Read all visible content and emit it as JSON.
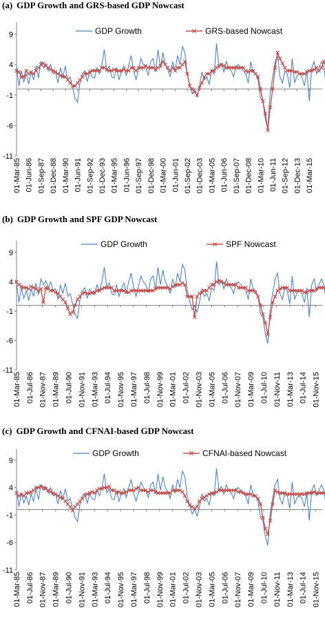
{
  "colors": {
    "gdp": "#4F81BD",
    "nowcast": "#C0504D",
    "zero_line": "#808080"
  },
  "chart_data": [
    {
      "type": "line",
      "panel_letter": "(a)",
      "title": "GDP Growth and GRS-based GDP Nowcast",
      "ylim": [
        -11,
        11
      ],
      "yticks": [
        "9",
        "4",
        "-1",
        "-6",
        "-11"
      ],
      "ytick_values": [
        9,
        4,
        -1,
        -6,
        -11
      ],
      "xlim": [
        1985.17,
        2016.5
      ],
      "xtick_labels": [
        "01-Mar-85",
        "01-Jun-86",
        "01-Sep-87",
        "01-Dec-88",
        "01-Mar-90",
        "01-Jun-91",
        "01-Sep-92",
        "01-Dec-93",
        "01-Mar-95",
        "01-Jun-96",
        "01-Sep-97",
        "01-Dec-98",
        "01-Mar-00",
        "01-Jun-01",
        "01-Sep-02",
        "01-Dec-03",
        "01-Mar-05",
        "01-Jun-06",
        "01-Sep-07",
        "01-Dec-08",
        "01-Mar-10",
        "01-Jun-11",
        "01-Sep-12",
        "01-Dec-13",
        "01-Mar-15"
      ],
      "xtick_values": [
        1985.17,
        1986.42,
        1987.67,
        1988.92,
        1990.17,
        1991.42,
        1992.67,
        1993.92,
        1995.17,
        1996.42,
        1997.67,
        1998.92,
        2000.17,
        2001.42,
        2002.67,
        2003.92,
        2005.17,
        2006.42,
        2007.67,
        2008.92,
        2010.17,
        2011.42,
        2012.67,
        2013.92,
        2015.17
      ],
      "legend": "top",
      "series": [
        {
          "name": "GDP Growth",
          "color_key": "gdp",
          "marker": "none",
          "x_start": 1985.17,
          "x_step": 0.25,
          "values": [
            3.8,
            0.5,
            3,
            1.2,
            2.5,
            0.8,
            2.8,
            1.5,
            3.8,
            1.8,
            4.5,
            3.5,
            4.2,
            3,
            4,
            2.5,
            2.8,
            1,
            3.5,
            2,
            3.8,
            1.5,
            2,
            0.2,
            -1.5,
            -2.2,
            1,
            2.5,
            3,
            1.2,
            2.8,
            2,
            1.8,
            3.5,
            2.5,
            4,
            6.5,
            3,
            3.8,
            2,
            1.8,
            3.5,
            1.5,
            2.8,
            3.8,
            2.2,
            4,
            5.5,
            3,
            1.5,
            3.2,
            5,
            4,
            3.5,
            2.2,
            4.5,
            5,
            2.8,
            6.5,
            3.5,
            6,
            4,
            3.2,
            2,
            4.5,
            3,
            5.5,
            4,
            7,
            6,
            2.5,
            0.8,
            -0.8,
            0,
            -1.2,
            0.5,
            2.8,
            1.5,
            2,
            0.8,
            3,
            2.5,
            7.5,
            3.5,
            4.2,
            2.8,
            4.5,
            3.5,
            3,
            2,
            3.8,
            4,
            3.5,
            3,
            2.5,
            1,
            4.5,
            2.8,
            2.5,
            1.5,
            -1.5,
            -2,
            -5,
            -6.5,
            -0.5,
            2,
            4.5,
            5.5,
            2,
            1,
            3,
            2.5,
            0.2,
            5,
            1,
            2.2,
            2.5,
            2,
            0.5,
            3,
            -2,
            3.5,
            4.5,
            2.5,
            3.5,
            4.5,
            3.5,
            0.5,
            1.5,
            2,
            1.5
          ]
        },
        {
          "name": "GRS-based Nowcast",
          "color_key": "nowcast",
          "marker": "x",
          "x_start": 1985.17,
          "x_step": 0.25,
          "values": [
            3,
            2.8,
            2,
            2,
            3,
            2.5,
            2.8,
            2.5,
            3,
            3.5,
            4,
            4.2,
            3.8,
            3.5,
            3.2,
            3,
            2.8,
            2.5,
            2.2,
            2,
            2,
            1.5,
            1,
            0.5,
            0.5,
            1,
            1.5,
            2,
            2.5,
            2.5,
            2.8,
            3,
            3,
            3,
            3,
            3.5,
            3.5,
            3.2,
            3,
            3,
            3.2,
            3,
            3,
            3,
            3.2,
            3,
            3,
            3.5,
            3.5,
            3,
            3.5,
            3.5,
            3.5,
            3.8,
            3.5,
            3.5,
            3.5,
            3.2,
            3.5,
            3.8,
            4.5,
            4,
            3.5,
            3,
            3.5,
            3,
            3.5,
            3.5,
            4,
            4.5,
            2.5,
            0.5,
            0,
            -0.5,
            -1,
            0.2,
            1,
            2,
            2.5,
            2.5,
            3,
            3,
            3.5,
            3.8,
            4,
            3.8,
            3.5,
            3.5,
            3.5,
            3.5,
            3.5,
            3.5,
            3.5,
            3.5,
            3,
            2.8,
            3,
            3,
            2.5,
            2,
            0,
            -2,
            -4,
            -6.8,
            -3,
            0,
            3.5,
            6,
            5,
            4.2,
            3.5,
            3,
            3,
            3,
            2.8,
            2.8,
            2.5,
            2.5,
            2.5,
            2.8,
            3,
            3,
            3.2,
            3.5,
            3,
            3.5,
            4.5,
            3.5,
            2,
            1.5,
            1.5
          ]
        }
      ]
    },
    {
      "type": "line",
      "panel_letter": "(b)",
      "title": "GDP Growth and SPF GDP Nowcast",
      "ylim": [
        -11,
        11
      ],
      "yticks": [
        "9",
        "4",
        "-1",
        "-6",
        "-11"
      ],
      "ytick_values": [
        9,
        4,
        -1,
        -6,
        -11
      ],
      "xlim": [
        1985.17,
        2016.5
      ],
      "xtick_labels": [
        "01-Mar-85",
        "01-Jul-86",
        "01-Nov-87",
        "01-Mar-89",
        "01-Jul-90",
        "01-Nov-91",
        "01-Mar-93",
        "01-Jul-94",
        "01-Nov-95",
        "01-Mar-97",
        "01-Jul-98",
        "01-Nov-99",
        "01-Mar-01",
        "01-Jul-02",
        "01-Nov-03",
        "01-Mar-05",
        "01-Jul-06",
        "01-Nov-07",
        "01-Mar-09",
        "01-Jul-10",
        "01-Nov-11",
        "01-Mar-13",
        "01-Jul-14",
        "01-Nov-15"
      ],
      "xtick_values": [
        1985.17,
        1986.5,
        1987.83,
        1989.17,
        1990.5,
        1991.83,
        1993.17,
        1994.5,
        1995.83,
        1997.17,
        1998.5,
        1999.83,
        2001.17,
        2002.5,
        2003.83,
        2005.17,
        2006.5,
        2007.83,
        2009.17,
        2010.5,
        2011.83,
        2013.17,
        2014.5,
        2015.83
      ],
      "legend": "top",
      "series": [
        {
          "name": "GDP Growth",
          "color_key": "gdp",
          "marker": "none",
          "x_start": 1985.17,
          "x_step": 0.25,
          "values": [
            3.8,
            0.5,
            3,
            1.2,
            2.5,
            0.8,
            2.8,
            1.5,
            3.8,
            1.8,
            4.5,
            3.5,
            4.2,
            3,
            4,
            2.5,
            2.8,
            1,
            3.5,
            2,
            3.8,
            1.5,
            2,
            0.2,
            -1.5,
            -2.2,
            1,
            2.5,
            3,
            1.2,
            2.8,
            2,
            1.8,
            3.5,
            2.5,
            4,
            6.5,
            3,
            3.8,
            2,
            1.8,
            3.5,
            1.5,
            2.8,
            3.8,
            2.2,
            4,
            5.5,
            3,
            1.5,
            3.2,
            5,
            4,
            3.5,
            2.2,
            4.5,
            5,
            2.8,
            6.5,
            3.5,
            6,
            4,
            3.2,
            2,
            4.5,
            3,
            5.5,
            4,
            7,
            6,
            2.5,
            0.8,
            -0.8,
            0,
            -1.2,
            0.5,
            2.8,
            1.5,
            2,
            0.8,
            3,
            2.5,
            7.5,
            3.5,
            4.2,
            2.8,
            4.5,
            3.5,
            3,
            2,
            3.8,
            4,
            3.5,
            3,
            2.5,
            1,
            4.5,
            2.8,
            2.5,
            1.5,
            -1.5,
            -2,
            -5,
            -6.5,
            -0.5,
            2,
            4.5,
            5.5,
            2,
            1,
            3,
            2.5,
            0.2,
            5,
            1,
            2.2,
            2.5,
            2,
            0.5,
            3,
            -2,
            3.5,
            4.5,
            2.5,
            3.5,
            4.5,
            3.5,
            0.5,
            1.5,
            2,
            1.5
          ]
        },
        {
          "name": "SPF Nowcast",
          "color_key": "nowcast",
          "marker": "x",
          "x_start": 1985.17,
          "x_step": 0.25,
          "values": [
            4,
            3.5,
            3.2,
            3,
            3,
            2.8,
            3.2,
            3,
            2.8,
            2.5,
            2.8,
            0.5,
            3,
            2.8,
            2.5,
            2.5,
            2.2,
            2,
            1.5,
            1,
            0.5,
            -0.5,
            -1.5,
            -1.2,
            0,
            1,
            1.5,
            2,
            2.2,
            2,
            2,
            2.2,
            2.2,
            2.5,
            2.5,
            2.8,
            3,
            3,
            3,
            3,
            2.5,
            2.5,
            2.5,
            2.5,
            2.5,
            2.2,
            2.2,
            2.5,
            2.5,
            2.5,
            2.5,
            2.5,
            2.5,
            2.5,
            2.5,
            2.5,
            2.5,
            2.8,
            3,
            3,
            3,
            3,
            3,
            2.8,
            3.2,
            3.5,
            3.5,
            3.5,
            3.8,
            3.5,
            1.5,
            1.5,
            1.5,
            -2,
            1.5,
            2,
            2.2,
            2.5,
            2.5,
            3,
            3.5,
            3.5,
            4,
            4.2,
            4,
            3.8,
            3.5,
            3.5,
            3.5,
            3.5,
            3.5,
            3,
            3,
            3,
            3,
            2.5,
            2.5,
            2.5,
            2.2,
            1.5,
            0,
            -1.5,
            -3,
            -5,
            -2,
            0.5,
            1.5,
            2.5,
            2.8,
            3,
            3,
            3,
            2.5,
            2.5,
            2.5,
            2.5,
            2.5,
            2.5,
            2.2,
            2.2,
            2.5,
            2.5,
            2.5,
            2.8,
            3,
            3,
            3,
            2.5,
            2.5,
            2.8,
            3
          ]
        }
      ]
    },
    {
      "type": "line",
      "panel_letter": "(c)",
      "title": "GDP Growth and CFNAI-based GDP Nowcast",
      "ylim": [
        -11,
        11
      ],
      "yticks": [
        "9",
        "4",
        "-1",
        "-6",
        "-11"
      ],
      "ytick_values": [
        9,
        4,
        -1,
        -6,
        -11
      ],
      "xlim": [
        1985.17,
        2016.5
      ],
      "xtick_labels": [
        "01-Mar-85",
        "01-Jul-86",
        "01-Nov-87",
        "01-Mar-89",
        "01-Jul-90",
        "01-Nov-91",
        "01-Mar-93",
        "01-Jul-94",
        "01-Nov-95",
        "01-Mar-97",
        "01-Jul-98",
        "01-Nov-99",
        "01-Mar-01",
        "01-Jul-02",
        "01-Nov-03",
        "01-Mar-05",
        "01-Jul-06",
        "01-Nov-07",
        "01-Mar-09",
        "01-Jul-10",
        "01-Nov-11",
        "01-Mar-13",
        "01-Jul-14",
        "01-Nov-15"
      ],
      "xtick_values": [
        1985.17,
        1986.5,
        1987.83,
        1989.17,
        1990.5,
        1991.83,
        1993.17,
        1994.5,
        1995.83,
        1997.17,
        1998.5,
        1999.83,
        2001.17,
        2002.5,
        2003.83,
        2005.17,
        2006.5,
        2007.83,
        2009.17,
        2010.5,
        2011.83,
        2013.17,
        2014.5,
        2015.83
      ],
      "legend": "top",
      "series": [
        {
          "name": "GDP Growth",
          "color_key": "gdp",
          "marker": "none",
          "x_start": 1985.17,
          "x_step": 0.25,
          "values": [
            3.8,
            0.5,
            3,
            1.2,
            2.5,
            0.8,
            2.8,
            1.5,
            3.8,
            1.8,
            4.5,
            3.5,
            4.2,
            3,
            4,
            2.5,
            2.8,
            1,
            3.5,
            2,
            3.8,
            1.5,
            2,
            0.2,
            -1.5,
            -2.2,
            1,
            2.5,
            3,
            1.2,
            2.8,
            2,
            1.8,
            3.5,
            2.5,
            4,
            6.5,
            3,
            3.8,
            2,
            1.8,
            3.5,
            1.5,
            2.8,
            3.8,
            2.2,
            4,
            5.5,
            3,
            1.5,
            3.2,
            5,
            4,
            3.5,
            2.2,
            4.5,
            5,
            2.8,
            6.5,
            3.5,
            6,
            4,
            3.2,
            2,
            4.5,
            3,
            5.5,
            4,
            7,
            6,
            2.5,
            0.8,
            -0.8,
            0,
            -1.2,
            0.5,
            2.8,
            1.5,
            2,
            0.8,
            3,
            2.5,
            7.5,
            3.5,
            4.2,
            2.8,
            4.5,
            3.5,
            3,
            2,
            3.8,
            4,
            3.5,
            3,
            2.5,
            1,
            4.5,
            2.8,
            2.5,
            1.5,
            -1.5,
            -2,
            -5,
            -6.5,
            -0.5,
            2,
            4.5,
            5.5,
            2,
            1,
            3,
            2.5,
            0.2,
            5,
            1,
            2.2,
            2.5,
            2,
            0.5,
            3,
            -2,
            3.5,
            4.5,
            2.5,
            3.5,
            4.5,
            3.5,
            0.5,
            1.5,
            2,
            1.5
          ]
        },
        {
          "name": "CFNAI-based Nowcast",
          "color_key": "nowcast",
          "marker": "x",
          "x_start": 1985.17,
          "x_step": 0.25,
          "values": [
            3,
            2.5,
            2.8,
            2.5,
            3,
            3,
            3.2,
            3.5,
            4,
            4,
            4.2,
            4,
            3.8,
            3.5,
            3.2,
            3,
            2.8,
            2.5,
            2.2,
            2,
            1.5,
            1,
            0.5,
            -0.2,
            0.5,
            1,
            1.5,
            2,
            2.5,
            2.8,
            3,
            3.2,
            3,
            3.5,
            3.8,
            3.8,
            4,
            4,
            4.2,
            3.5,
            3.5,
            3,
            3.2,
            3,
            3,
            3.2,
            3.5,
            3.5,
            3.5,
            3.8,
            4,
            3.5,
            3.5,
            3.5,
            3.2,
            3.5,
            3.5,
            3.2,
            3,
            3,
            3,
            3,
            3,
            3,
            3.5,
            3.5,
            3.5,
            3.5,
            3.2,
            2.5,
            1.5,
            0.8,
            0.5,
            0.2,
            0.5,
            1.5,
            2,
            2.2,
            2.5,
            2.8,
            3,
            3,
            3.2,
            3.5,
            3.5,
            3.5,
            3.5,
            3.5,
            3.5,
            3.5,
            3.5,
            3.2,
            3.2,
            3,
            2.8,
            2.8,
            2.8,
            2.5,
            2.5,
            2,
            1,
            -1.5,
            -3.5,
            -4.5,
            -2,
            1,
            3.5,
            3.2,
            3,
            3,
            3,
            2.8,
            2.8,
            2.8,
            2.8,
            2.8,
            2.8,
            2.8,
            2.8,
            3,
            3,
            3,
            3.2,
            3,
            3,
            3,
            3,
            3.2,
            3,
            2.5,
            2.5
          ]
        }
      ]
    }
  ]
}
